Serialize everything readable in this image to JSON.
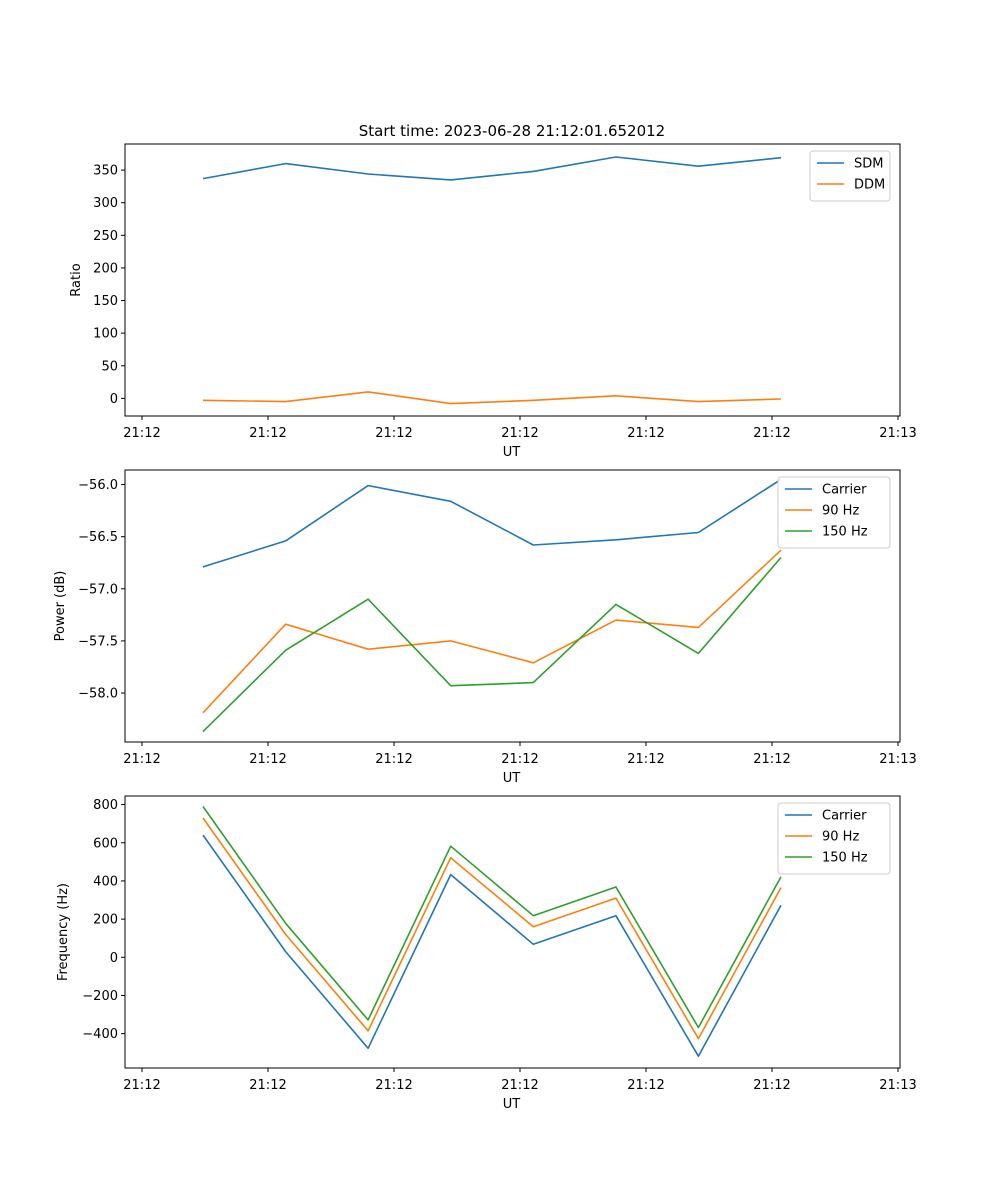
{
  "figure": {
    "title": "Start time: 2023-06-28 21:12:01.652012"
  },
  "colors": {
    "blue": "#1f77b4",
    "orange": "#ff7f0e",
    "green": "#2ca02c"
  },
  "chart_data": [
    {
      "type": "line",
      "title": "Start time: 2023-06-28 21:12:01.652012",
      "xlabel": "UT",
      "ylabel": "Ratio",
      "x_tick_labels": [
        "21:12",
        "21:12",
        "21:12",
        "21:12",
        "21:12",
        "21:12",
        "21:12"
      ],
      "x_end_tick_label": "21:13",
      "y_ticks": [
        0,
        50,
        100,
        150,
        200,
        250,
        300,
        350
      ],
      "y_tick_labels": [
        "0",
        "50",
        "100",
        "150",
        "200",
        "250",
        "300",
        "350"
      ],
      "ylim": [
        -27,
        390
      ],
      "x": [
        0,
        1,
        2,
        3,
        4,
        5,
        6,
        7
      ],
      "legend_position": "top-right",
      "series": [
        {
          "name": "SDM",
          "color": "#1f77b4",
          "values": [
            337,
            360,
            344,
            335,
            348,
            370,
            356,
            369
          ]
        },
        {
          "name": "DDM",
          "color": "#ff7f0e",
          "values": [
            -3,
            -5,
            10,
            -8,
            -3,
            4,
            -5,
            -1
          ]
        }
      ]
    },
    {
      "type": "line",
      "xlabel": "UT",
      "ylabel": "Power (dB)",
      "x_tick_labels": [
        "21:12",
        "21:12",
        "21:12",
        "21:12",
        "21:12",
        "21:12",
        "21:12"
      ],
      "x_end_tick_label": "21:13",
      "y_ticks": [
        -58.0,
        -57.5,
        -57.0,
        -56.5,
        -56.0
      ],
      "y_tick_labels": [
        "−58.0",
        "−57.5",
        "−57.0",
        "−56.5",
        "−56.0"
      ],
      "ylim": [
        -58.47,
        -55.86
      ],
      "x": [
        0,
        1,
        2,
        3,
        4,
        5,
        6,
        7
      ],
      "legend_position": "top-right",
      "series": [
        {
          "name": "Carrier",
          "color": "#1f77b4",
          "values": [
            -56.79,
            -56.54,
            -56.01,
            -56.16,
            -56.58,
            -56.53,
            -56.46,
            -55.95
          ]
        },
        {
          "name": "90 Hz",
          "color": "#ff7f0e",
          "values": [
            -58.19,
            -57.34,
            -57.58,
            -57.5,
            -57.71,
            -57.3,
            -57.37,
            -56.63
          ]
        },
        {
          "name": "150 Hz",
          "color": "#2ca02c",
          "values": [
            -58.37,
            -57.59,
            -57.1,
            -57.93,
            -57.9,
            -57.15,
            -57.62,
            -56.7
          ]
        }
      ]
    },
    {
      "type": "line",
      "xlabel": "UT",
      "ylabel": "Frequency (Hz)",
      "x_tick_labels": [
        "21:12",
        "21:12",
        "21:12",
        "21:12",
        "21:12",
        "21:12",
        "21:12"
      ],
      "x_end_tick_label": "21:13",
      "y_ticks": [
        -400,
        -200,
        0,
        200,
        400,
        600,
        800
      ],
      "y_tick_labels": [
        "−400",
        "−200",
        "0",
        "200",
        "400",
        "600",
        "800"
      ],
      "ylim": [
        -580,
        845
      ],
      "x": [
        0,
        1,
        2,
        3,
        4,
        5,
        6,
        7
      ],
      "legend_position": "top-right",
      "series": [
        {
          "name": "Carrier",
          "color": "#1f77b4",
          "values": [
            640,
            30,
            -477,
            433,
            68,
            218,
            -518,
            273
          ]
        },
        {
          "name": "90 Hz",
          "color": "#ff7f0e",
          "values": [
            730,
            120,
            -385,
            522,
            160,
            310,
            -426,
            365
          ]
        },
        {
          "name": "150 Hz",
          "color": "#2ca02c",
          "values": [
            790,
            178,
            -328,
            582,
            218,
            368,
            -368,
            422
          ]
        }
      ]
    }
  ]
}
